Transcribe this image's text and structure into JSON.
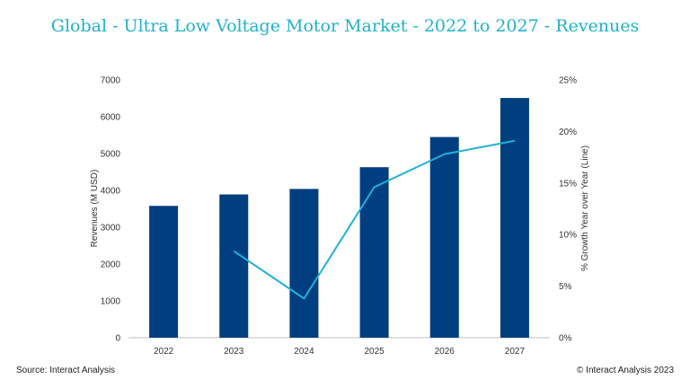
{
  "chart_data": {
    "type": "bar",
    "title": "Global - Ultra Low Voltage Motor Market - 2022 to 2027 - Revenues",
    "categories": [
      "2022",
      "2023",
      "2024",
      "2025",
      "2026",
      "2027"
    ],
    "series": [
      {
        "name": "Revenues (M USD)",
        "type": "bar",
        "axis": "left",
        "color": "#003f7f",
        "values": [
          3580,
          3890,
          4040,
          4630,
          5450,
          6510
        ]
      },
      {
        "name": "% Growth Year over Year (Line)",
        "type": "line",
        "axis": "right",
        "color": "#22b0d8",
        "values": [
          null,
          8.4,
          3.8,
          14.6,
          17.8,
          19.1
        ]
      }
    ],
    "ylabel": "Revenues (M USD)",
    "y2label": "% Growth Year over Year (Line)",
    "ylim": [
      0,
      7000
    ],
    "y2lim": [
      0,
      25
    ],
    "yticks": [
      "0",
      "1000",
      "2000",
      "3000",
      "4000",
      "5000",
      "6000",
      "7000"
    ],
    "y2ticks": [
      "0%",
      "5%",
      "10%",
      "15%",
      "20%",
      "25%"
    ],
    "grid": false,
    "legend": "none"
  },
  "footer": {
    "source": "Source: Interact Analysis",
    "copyright": "© Interact Analysis 2023"
  }
}
